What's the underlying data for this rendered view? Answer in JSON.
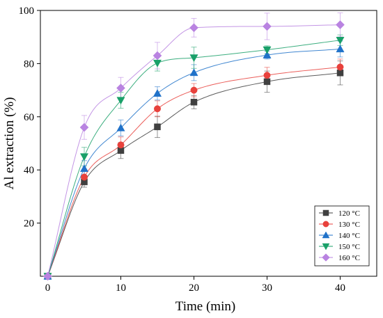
{
  "chart_data": {
    "type": "scatter",
    "xlabel": "Time (min)",
    "ylabel": "Al extraction (%)",
    "xlim": [
      -1,
      45
    ],
    "ylim": [
      0,
      100
    ],
    "x_ticks": [
      0,
      10,
      20,
      30,
      40
    ],
    "y_ticks": [
      20,
      40,
      60,
      80,
      100
    ],
    "grid": false,
    "legend_position": "bottom-right",
    "series": [
      {
        "name": "120 °C",
        "marker": "square",
        "color": "#404040",
        "x": [
          0,
          5,
          10,
          15,
          20,
          30,
          40
        ],
        "y": [
          0,
          35.5,
          47.3,
          56.2,
          65.5,
          73.2,
          76.5
        ],
        "err": [
          0,
          2,
          3,
          4,
          2.5,
          4,
          4.5
        ]
      },
      {
        "name": "130 °C",
        "marker": "circle",
        "color": "#e8413c",
        "x": [
          0,
          5,
          10,
          15,
          20,
          30,
          40
        ],
        "y": [
          0,
          37.3,
          49.4,
          63,
          70,
          75.6,
          78.7
        ],
        "err": [
          0,
          2.5,
          3,
          3,
          2.5,
          3,
          3
        ]
      },
      {
        "name": "140 °C",
        "marker": "triangle-up",
        "color": "#2072c9",
        "x": [
          0,
          5,
          10,
          15,
          20,
          30,
          40
        ],
        "y": [
          0,
          40.5,
          55.8,
          68.8,
          76.6,
          83.2,
          85.5
        ],
        "err": [
          0,
          3,
          3,
          2.5,
          3,
          1.5,
          3
        ]
      },
      {
        "name": "150 °C",
        "marker": "triangle-down",
        "color": "#19a069",
        "x": [
          0,
          5,
          10,
          15,
          20,
          30,
          40
        ],
        "y": [
          0,
          45,
          66.2,
          80.2,
          82.2,
          85.2,
          88.8
        ],
        "err": [
          0,
          3.5,
          3,
          3,
          4,
          1.5,
          2
        ]
      },
      {
        "name": "160 °C",
        "marker": "diamond",
        "color": "#b983e1",
        "x": [
          0,
          5,
          10,
          15,
          20,
          30,
          40
        ],
        "y": [
          0,
          56,
          70.8,
          83,
          93.5,
          94,
          94.6
        ],
        "err": [
          0,
          4.5,
          4,
          5,
          3.5,
          5,
          4.5
        ]
      }
    ]
  }
}
